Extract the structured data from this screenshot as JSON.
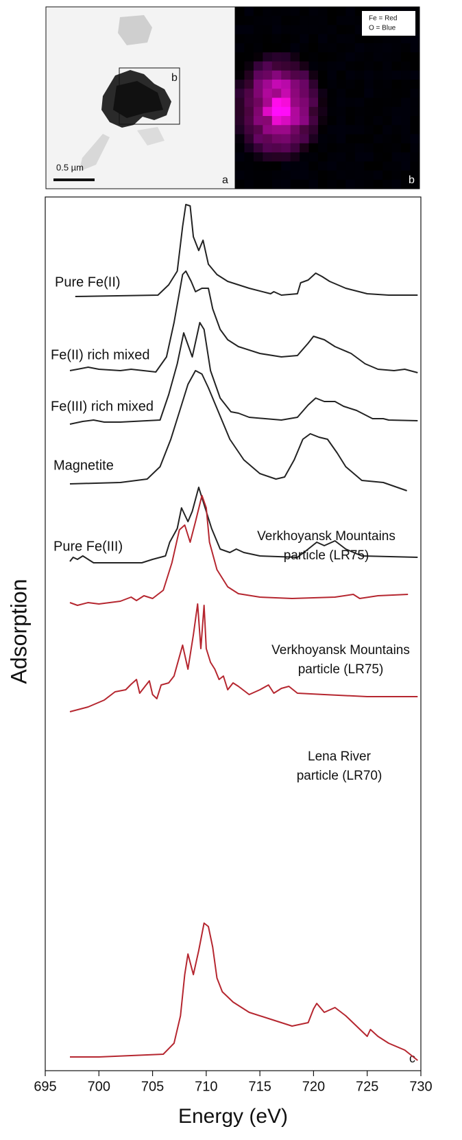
{
  "panels": {
    "a_label": "a",
    "b_box_label": "b",
    "scale_bar": "0.5 µm",
    "b_label": "b",
    "legend": [
      "Fe = Red",
      "O = Blue"
    ]
  },
  "chart_data": {
    "type": "line",
    "panel_label": "c",
    "xlabel": "Energy (eV)",
    "ylabel": "Adsorption",
    "xlim": [
      695,
      730
    ],
    "xticks": [
      695,
      700,
      705,
      710,
      715,
      720,
      725,
      730
    ],
    "ylim": [
      0,
      1273
    ],
    "series": [
      {
        "name": "Pure Fe(II)",
        "color": "#222222",
        "x": [
          697.8,
          705.5,
          706.5,
          707.3,
          707.8,
          708.1,
          708.5,
          708.8,
          709.3,
          709.7,
          710.2,
          711,
          712,
          714,
          716,
          716.3,
          717,
          718.5,
          718.8,
          719.5,
          720.2,
          720.8,
          721.5,
          723,
          725,
          727,
          729.7
        ],
        "values": [
          1128,
          1130,
          1145,
          1165,
          1230,
          1262,
          1260,
          1215,
          1195,
          1210,
          1175,
          1160,
          1150,
          1140,
          1132,
          1135,
          1130,
          1132,
          1148,
          1152,
          1162,
          1157,
          1150,
          1140,
          1132,
          1130,
          1130
        ]
      },
      {
        "name": "Fe(II) rich mixed",
        "color": "#222222",
        "x": [
          697.3,
          698,
          699,
          700,
          702,
          703,
          705.3,
          706.3,
          707,
          707.8,
          708.1,
          708.6,
          709,
          709.6,
          710.2,
          710.6,
          711.3,
          712,
          713,
          715,
          717,
          718.5,
          719.5,
          720,
          721,
          722,
          723.5,
          724.8,
          726,
          727.5,
          728.5,
          729.7
        ],
        "values": [
          1020,
          1022,
          1025,
          1022,
          1020,
          1022,
          1018,
          1040,
          1090,
          1160,
          1165,
          1150,
          1135,
          1140,
          1140,
          1110,
          1080,
          1065,
          1055,
          1045,
          1040,
          1042,
          1060,
          1070,
          1065,
          1055,
          1045,
          1030,
          1022,
          1020,
          1022,
          1017
        ]
      },
      {
        "name": "Fe(III) rich mixed",
        "color": "#222222",
        "x": [
          697.3,
          698.5,
          699.5,
          700.5,
          702,
          705.7,
          706.5,
          707.3,
          707.9,
          708.7,
          709.4,
          709.8,
          710.4,
          711.3,
          712.3,
          713,
          714,
          717,
          718.5,
          719.5,
          720.2,
          721,
          722,
          722.8,
          724,
          725.5,
          726.5,
          727,
          729.7
        ],
        "values": [
          942,
          946,
          948,
          945,
          945,
          948,
          985,
          1030,
          1075,
          1040,
          1090,
          1080,
          1020,
          980,
          960,
          958,
          952,
          948,
          952,
          970,
          980,
          975,
          975,
          968,
          962,
          950,
          950,
          948,
          947
        ]
      },
      {
        "name": "Magnetite",
        "color": "#222222",
        "x": [
          697.3,
          702,
          704.5,
          705.7,
          706.7,
          707.6,
          708.3,
          709,
          709.6,
          710.2,
          711,
          712.2,
          713.5,
          715,
          716.5,
          717.3,
          718.2,
          719,
          719.7,
          720.5,
          721.3,
          722.2,
          723,
          724.5,
          726.5,
          728.7
        ],
        "values": [
          855,
          857,
          862,
          880,
          920,
          965,
          1000,
          1020,
          1015,
          995,
          965,
          920,
          890,
          870,
          862,
          865,
          890,
          920,
          928,
          923,
          920,
          900,
          880,
          860,
          857,
          845
        ]
      },
      {
        "name": "Pure Fe(III)",
        "color": "#222222",
        "x": [
          697.3,
          697.6,
          698,
          698.5,
          699,
          699.5,
          701,
          704,
          705,
          706.2,
          706.6,
          707.3,
          707.7,
          708.3,
          708.7,
          709.3,
          709.8,
          710.5,
          711.3,
          712.2,
          712.8,
          713.5,
          715,
          718.5,
          719.5,
          720.3,
          721,
          722,
          723,
          724.5,
          729.7
        ],
        "values": [
          742,
          748,
          745,
          750,
          745,
          740,
          740,
          740,
          745,
          750,
          770,
          790,
          820,
          800,
          815,
          850,
          825,
          790,
          760,
          755,
          760,
          755,
          750,
          748,
          760,
          770,
          765,
          772,
          760,
          750,
          748
        ]
      },
      {
        "name": [
          "Verkhoyansk Mountains",
          "particle (LR75)"
        ],
        "color": "#b5262f",
        "x": [
          697.3,
          698,
          699,
          700,
          702,
          703,
          703.5,
          704.2,
          705,
          706,
          706.8,
          707.5,
          708,
          708.5,
          709,
          709.6,
          710,
          710.3,
          711,
          712,
          713,
          715,
          718,
          722,
          723.7,
          724.3,
          726,
          728.8
        ],
        "values": [
          682,
          678,
          682,
          680,
          684,
          690,
          685,
          692,
          688,
          700,
          740,
          788,
          795,
          770,
          800,
          838,
          820,
          770,
          730,
          705,
          695,
          690,
          688,
          690,
          694,
          688,
          692,
          694
        ]
      },
      {
        "name": [
          "Verkhoyansk Mountains",
          "particle (LR75)"
        ],
        "color": "#b5262f",
        "x": [
          697.3,
          699,
          700.5,
          701.5,
          702.5,
          703,
          703.5,
          703.8,
          704.3,
          704.7,
          705,
          705.4,
          705.8,
          706.5,
          707,
          707.8,
          708.3,
          708.8,
          709.2,
          709.5,
          709.8,
          710,
          710.4,
          710.8,
          711.2,
          711.6,
          712,
          712.5,
          713,
          714,
          715,
          715.8,
          716.3,
          717,
          717.7,
          718.5,
          721,
          725,
          729.7
        ],
        "values": [
          523,
          530,
          540,
          552,
          555,
          563,
          570,
          550,
          560,
          568,
          548,
          542,
          562,
          565,
          575,
          620,
          585,
          635,
          680,
          615,
          678,
          615,
          595,
          585,
          570,
          575,
          555,
          565,
          560,
          548,
          555,
          562,
          550,
          557,
          560,
          550,
          548,
          545,
          545
        ]
      },
      {
        "name": [
          "Lena River",
          "particle (LR70)"
        ],
        "color": "#b5262f",
        "x": [
          697.3,
          700,
          703,
          706,
          707,
          707.6,
          708,
          708.3,
          708.8,
          709.3,
          709.8,
          710.2,
          710.6,
          711,
          711.5,
          712.5,
          714,
          716,
          718,
          719.5,
          720,
          720.3,
          721,
          722,
          723,
          724,
          725,
          725.3,
          726,
          727,
          728.5,
          729.7
        ],
        "values": [
          20,
          20,
          22,
          24,
          40,
          80,
          140,
          170,
          140,
          175,
          215,
          210,
          180,
          135,
          115,
          100,
          85,
          75,
          65,
          70,
          90,
          98,
          85,
          92,
          80,
          65,
          50,
          60,
          50,
          40,
          30,
          15
        ]
      }
    ]
  }
}
